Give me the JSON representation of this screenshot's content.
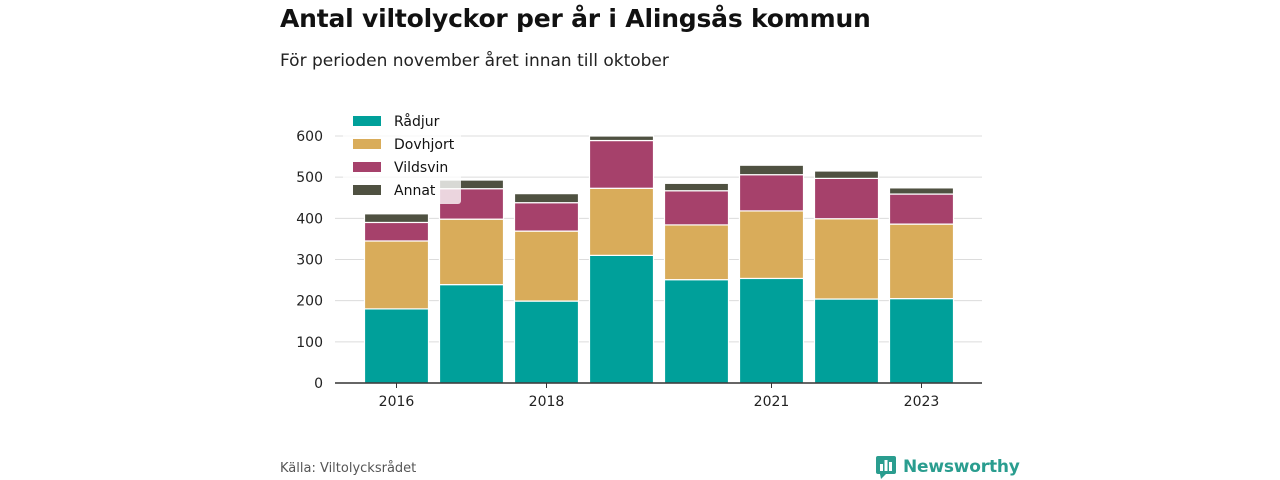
{
  "title": "Antal viltolyckor per år i Alingsås kommun",
  "subtitle": "För perioden november året innan till oktober",
  "source": "Källa: Viltolycksrådet",
  "brand": "Newsworthy",
  "chart_data": {
    "type": "bar",
    "stacked": true,
    "categories": [
      "2016",
      "2017",
      "2018",
      "2019",
      "2020",
      "2021",
      "2022",
      "2023"
    ],
    "x_tick_labels": [
      "2016",
      "",
      "2018",
      "",
      "",
      "2021",
      "",
      "2023"
    ],
    "series": [
      {
        "name": "Rådjur",
        "color": "#00a09a",
        "values": [
          180,
          239,
          199,
          310,
          251,
          254,
          204,
          205
        ]
      },
      {
        "name": "Dovhjort",
        "color": "#d9ac5a",
        "values": [
          165,
          159,
          170,
          163,
          133,
          164,
          195,
          181
        ]
      },
      {
        "name": "Vildsvin",
        "color": "#a6416b",
        "values": [
          45,
          74,
          69,
          116,
          83,
          88,
          98,
          73
        ]
      },
      {
        "name": "Annat",
        "color": "#4f5141",
        "values": [
          21,
          21,
          22,
          11,
          18,
          23,
          18,
          15
        ]
      }
    ],
    "yticks": [
      0,
      100,
      200,
      300,
      400,
      500,
      600
    ],
    "ylim": [
      0,
      600
    ],
    "xlabel": "",
    "ylabel": "",
    "grid": true,
    "legend_position": "top-left"
  }
}
